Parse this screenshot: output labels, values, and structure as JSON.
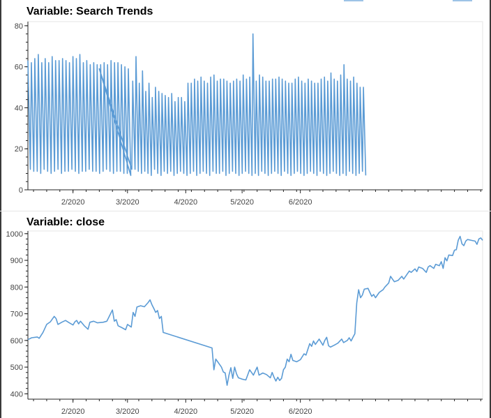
{
  "chart_data": [
    {
      "type": "line",
      "title": "Variable: Search Trends",
      "xlabel": "",
      "ylabel": "",
      "ylim": [
        0,
        82
      ],
      "x_ticks": [
        "2/2020",
        "3/2020",
        "4/2020",
        "5/2020",
        "6/2020"
      ],
      "y_ticks": [
        0,
        20,
        40,
        60,
        80
      ],
      "grid": false,
      "series": [
        {
          "color": "#5b9bd5",
          "segments": [
            {
              "days": [
                0,
                55.3
              ],
              "peaks": [
                63,
                62,
                64,
                66,
                62,
                64,
                62,
                65,
                63,
                63,
                64,
                63,
                62,
                65,
                64,
                66,
                62,
                63,
                61,
                62,
                61,
                61,
                62,
                61,
                63,
                62,
                62,
                61,
                60,
                59
              ],
              "troughs": [
                10,
                9,
                9,
                8,
                10,
                9,
                8,
                9,
                10,
                8,
                9,
                9,
                10,
                9,
                8,
                9,
                9,
                10,
                9,
                9,
                8,
                9,
                10,
                9,
                8,
                9,
                9,
                8,
                8,
                7
              ]
            },
            {
              "days": [
                55.8,
                180.3
              ],
              "peaks": [
                53,
                65,
                52,
                58,
                48,
                52,
                45,
                50,
                48,
                47,
                46,
                45,
                47,
                43,
                45,
                45,
                43,
                52,
                52,
                54,
                53,
                55,
                53,
                52,
                55,
                56,
                53,
                54,
                54,
                53,
                52,
                53,
                54,
                53,
                56,
                54,
                55,
                76,
                53,
                56,
                55,
                53,
                53,
                54,
                54,
                55,
                54,
                53,
                52,
                52,
                54,
                55,
                53,
                52,
                54,
                53,
                52,
                52,
                54,
                55,
                53,
                57,
                54,
                53,
                56,
                61,
                54,
                53,
                55,
                52,
                50,
                50
              ],
              "troughs": [
                10,
                9,
                8,
                9,
                8,
                7,
                10,
                8,
                7,
                9,
                8,
                9,
                7,
                8,
                9,
                8,
                7,
                8,
                9,
                7,
                8,
                9,
                8,
                7,
                9,
                8,
                8,
                9,
                7,
                8,
                9,
                8,
                7,
                8,
                9,
                8,
                7,
                8,
                7,
                9,
                8,
                7,
                8,
                9,
                8,
                7,
                9,
                8,
                7,
                8,
                9,
                8,
                7,
                8,
                9,
                8,
                7,
                9,
                8,
                7,
                8,
                9,
                8,
                7,
                8,
                7,
                9,
                8,
                7,
                8,
                9,
                7
              ]
            }
          ],
          "bridge": [
            [
              38,
              59
            ],
            [
              55.3,
              10
            ],
            [
              55.8,
              53
            ]
          ]
        }
      ]
    },
    {
      "type": "line",
      "title": "Variable: close",
      "xlabel": "",
      "ylabel": "",
      "ylim": [
        380,
        1010
      ],
      "x_ticks": [
        "2/2020",
        "3/2020",
        "4/2020",
        "5/2020",
        "6/2020"
      ],
      "y_ticks": [
        400,
        500,
        600,
        700,
        800,
        900,
        1000
      ],
      "grid": false,
      "series": [
        {
          "color": "#5b9bd5",
          "points": [
            [
              0,
              603
            ],
            [
              2,
              610
            ],
            [
              5,
              613
            ],
            [
              6,
              608
            ],
            [
              8,
              630
            ],
            [
              10,
              660
            ],
            [
              12,
              670
            ],
            [
              14,
              690
            ],
            [
              15,
              682
            ],
            [
              16,
              660
            ],
            [
              18,
              668
            ],
            [
              20,
              675
            ],
            [
              22,
              666
            ],
            [
              24,
              658
            ],
            [
              25,
              670
            ],
            [
              26,
              675
            ],
            [
              27,
              662
            ],
            [
              28,
              672
            ],
            [
              30,
              655
            ],
            [
              32,
              642
            ],
            [
              33,
              668
            ],
            [
              35,
              672
            ],
            [
              37,
              666
            ],
            [
              40,
              668
            ],
            [
              42,
              672
            ],
            [
              44,
              700
            ],
            [
              45,
              714
            ],
            [
              46,
              672
            ],
            [
              47,
              678
            ],
            [
              48,
              655
            ],
            [
              50,
              648
            ],
            [
              52,
              640
            ],
            [
              53,
              660
            ],
            [
              55,
              650
            ],
            [
              56,
              705
            ],
            [
              57,
              690
            ],
            [
              58,
              725
            ],
            [
              60,
              730
            ],
            [
              62,
              726
            ],
            [
              64,
              742
            ],
            [
              65,
              752
            ],
            [
              66,
              734
            ],
            [
              67,
              720
            ],
            [
              68,
              705
            ],
            [
              69,
              712
            ],
            [
              70,
              682
            ],
            [
              71,
              690
            ],
            [
              72,
              630
            ],
            [
              98,
              572
            ],
            [
              99,
              490
            ],
            [
              100,
              530
            ],
            [
              101,
              520
            ],
            [
              103,
              500
            ],
            [
              104,
              482
            ],
            [
              105,
              478
            ],
            [
              106,
              432
            ],
            [
              107,
              470
            ],
            [
              108,
              498
            ],
            [
              109,
              458
            ],
            [
              110,
              500
            ],
            [
              111,
              475
            ],
            [
              112,
              460
            ],
            [
              114,
              455
            ],
            [
              116,
              452
            ],
            [
              118,
              490
            ],
            [
              119,
              480
            ],
            [
              120,
              470
            ],
            [
              122,
              500
            ],
            [
              123,
              470
            ],
            [
              125,
              478
            ],
            [
              127,
              472
            ],
            [
              129,
              460
            ],
            [
              130,
              480
            ],
            [
              131,
              462
            ],
            [
              132,
              448
            ],
            [
              133,
              462
            ],
            [
              134,
              450
            ],
            [
              135,
              458
            ],
            [
              136,
              490
            ],
            [
              137,
              500
            ],
            [
              138,
              530
            ],
            [
              139,
              520
            ],
            [
              140,
              548
            ],
            [
              141,
              525
            ],
            [
              143,
              520
            ],
            [
              145,
              528
            ],
            [
              147,
              550
            ],
            [
              148,
              545
            ],
            [
              150,
              588
            ],
            [
              151,
              578
            ],
            [
              152,
              598
            ],
            [
              153,
              585
            ],
            [
              155,
              605
            ],
            [
              157,
              582
            ],
            [
              158,
              600
            ],
            [
              159,
              612
            ],
            [
              160,
              580
            ],
            [
              161,
              575
            ],
            [
              163,
              582
            ],
            [
              165,
              590
            ],
            [
              167,
              605
            ],
            [
              168,
              592
            ],
            [
              170,
              600
            ],
            [
              171,
              610
            ],
            [
              172,
              598
            ],
            [
              173,
              612
            ],
            [
              174,
              625
            ],
            [
              175,
              740
            ],
            [
              176,
              790
            ],
            [
              177,
              760
            ],
            [
              178,
              770
            ],
            [
              179,
              792
            ],
            [
              181,
              795
            ],
            [
              182,
              780
            ],
            [
              183,
              765
            ],
            [
              184,
              772
            ],
            [
              185,
              760
            ],
            [
              187,
              780
            ],
            [
              189,
              790
            ],
            [
              190,
              800
            ],
            [
              192,
              815
            ],
            [
              193,
              840
            ],
            [
              194,
              830
            ],
            [
              195,
              820
            ],
            [
              197,
              825
            ],
            [
              199,
              840
            ],
            [
              200,
              830
            ],
            [
              202,
              850
            ],
            [
              203,
              860
            ],
            [
              204,
              855
            ],
            [
              206,
              868
            ],
            [
              207,
              858
            ],
            [
              208,
              875
            ],
            [
              210,
              870
            ],
            [
              212,
              855
            ],
            [
              213,
              875
            ],
            [
              214,
              880
            ],
            [
              216,
              870
            ],
            [
              217,
              885
            ],
            [
              219,
              880
            ],
            [
              220,
              895
            ],
            [
              221,
              870
            ],
            [
              222,
              910
            ],
            [
              223,
              898
            ],
            [
              224,
              920
            ],
            [
              226,
              918
            ],
            [
              227,
              938
            ],
            [
              228,
              940
            ],
            [
              229,
              975
            ],
            [
              230,
              990
            ],
            [
              231,
              962
            ],
            [
              232,
              955
            ],
            [
              233,
              972
            ],
            [
              234,
              978
            ],
            [
              236,
              975
            ],
            [
              238,
              972
            ],
            [
              239,
              960
            ],
            [
              240,
              980
            ],
            [
              241,
              984
            ],
            [
              242,
              975
            ]
          ]
        }
      ]
    }
  ]
}
